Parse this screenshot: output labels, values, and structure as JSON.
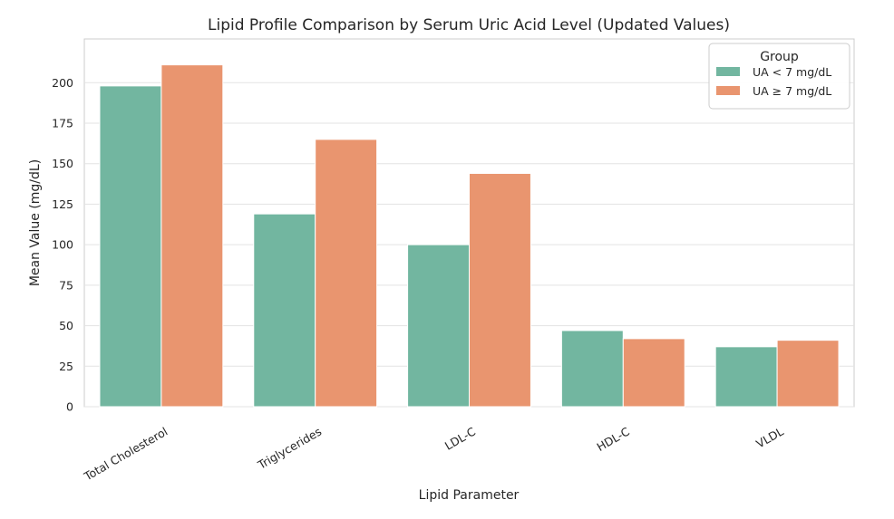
{
  "chart_data": {
    "type": "bar",
    "title": "Lipid Profile Comparison by Serum Uric Acid Level (Updated Values)",
    "xlabel": "Lipid Parameter",
    "ylabel": "Mean Value (mg/dL)",
    "categories": [
      "Total Cholesterol",
      "Triglycerides",
      "LDL-C",
      "HDL-C",
      "VLDL"
    ],
    "series": [
      {
        "name": "UA < 7 mg/dL",
        "values": [
          198,
          119,
          100,
          47,
          37
        ],
        "color": "#72b6a0"
      },
      {
        "name": "UA ≥ 7 mg/dL",
        "values": [
          211,
          165,
          144,
          42,
          41
        ],
        "color": "#e9956f"
      }
    ],
    "ylim": [
      0,
      227
    ],
    "yticks": [
      0,
      25,
      50,
      75,
      100,
      125,
      150,
      175,
      200
    ],
    "grid": true,
    "legend": {
      "title": "Group",
      "placement": "top-right"
    }
  }
}
